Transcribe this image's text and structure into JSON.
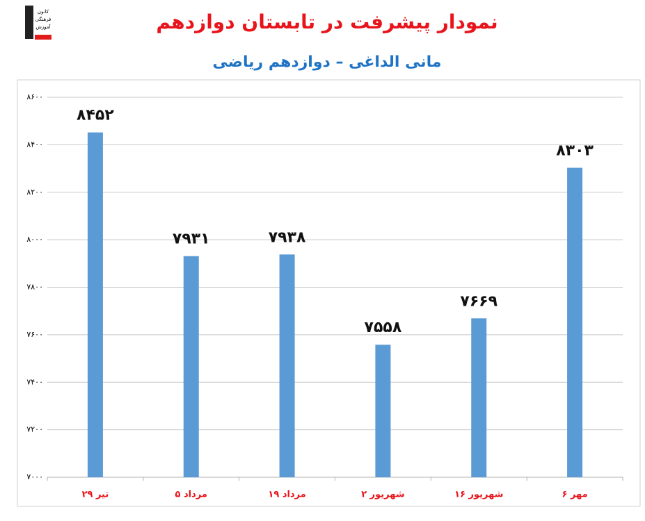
{
  "logo": [
    "کانون",
    "فرهنگی",
    "آموزش"
  ],
  "chart_data": {
    "type": "bar",
    "title": "نمودار پیشرفت در تابستان دوازدهم",
    "subtitle": "مانی الداغی – دوازدهم ریاضی",
    "categories": [
      "۲۹ تیر",
      "۵ مرداد",
      "۱۹ مرداد",
      "۲ شهریور",
      "۱۶ شهریور",
      "۶ مهر"
    ],
    "values": [
      8452,
      7931,
      7938,
      7558,
      7669,
      8303
    ],
    "value_labels": [
      "۸۴۵۲",
      "۷۹۳۱",
      "۷۹۳۸",
      "۷۵۵۸",
      "۷۶۶۹",
      "۸۳۰۳"
    ],
    "color": "#5b9bd5",
    "ylim": [
      7000,
      8600
    ],
    "yticks": [
      {
        "value": 7000,
        "label": "۷۰۰۰"
      },
      {
        "value": 7200,
        "label": "۷۲۰۰"
      },
      {
        "value": 7400,
        "label": "۷۴۰۰"
      },
      {
        "value": 7600,
        "label": "۷۶۰۰"
      },
      {
        "value": 7800,
        "label": "۷۸۰۰"
      },
      {
        "value": 8000,
        "label": "۸۰۰۰"
      },
      {
        "value": 8200,
        "label": "۸۲۰۰"
      },
      {
        "value": 8400,
        "label": "۸۴۰۰"
      },
      {
        "value": 8600,
        "label": "۸۶۰۰"
      }
    ],
    "grid": true
  }
}
